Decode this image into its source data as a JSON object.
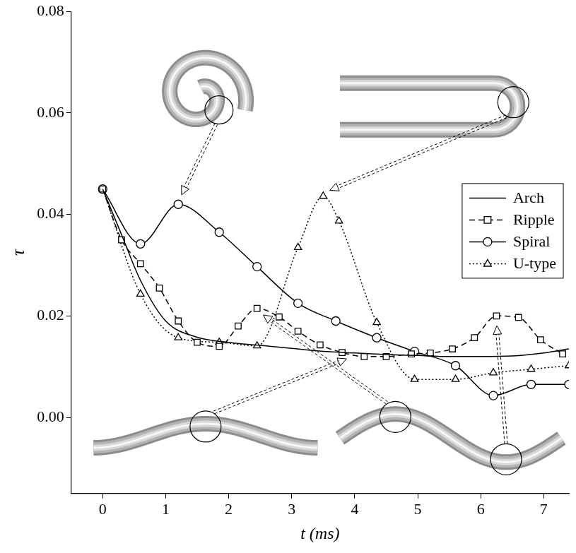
{
  "chart_data": {
    "type": "line",
    "x_label": "t (ms)",
    "y_label": "τ",
    "xlim": [
      -0.5,
      7.4
    ],
    "ylim": [
      -0.015,
      0.08
    ],
    "xticks": [
      0,
      1,
      2,
      3,
      4,
      5,
      6,
      7
    ],
    "yticks": [
      {
        "value": 0,
        "label": "0.00"
      },
      {
        "value": 0.02,
        "label": "0.02"
      },
      {
        "value": 0.04,
        "label": "0.04"
      },
      {
        "value": 0.06,
        "label": "0.06"
      },
      {
        "value": 0.08,
        "label": "0.08"
      }
    ],
    "grid": false,
    "legend": "upper right",
    "series": [
      {
        "name": "Arch",
        "color": "#000000",
        "marker": "none",
        "line_style": "solid",
        "x": [
          0,
          0.3,
          0.6,
          1,
          1.5,
          2,
          2.5,
          3,
          3.5,
          4,
          4.5,
          5,
          5.5,
          6,
          6.5,
          7,
          7.4
        ],
        "values": [
          0.045,
          0.036,
          0.027,
          0.019,
          0.0158,
          0.0148,
          0.0142,
          0.0136,
          0.013,
          0.0127,
          0.0124,
          0.0122,
          0.012,
          0.012,
          0.0121,
          0.0127,
          0.0135
        ]
      },
      {
        "name": "Ripple",
        "color": "#000000",
        "marker": "square",
        "line_style": "dashed",
        "x": [
          0,
          0.3,
          0.6,
          0.9,
          1.2,
          1.5,
          1.85,
          2.15,
          2.45,
          2.8,
          3.1,
          3.45,
          3.8,
          4.15,
          4.5,
          4.9,
          5.2,
          5.55,
          5.9,
          6.25,
          6.6,
          6.95,
          7.3
        ],
        "values": [
          0.045,
          0.035,
          0.0303,
          0.0255,
          0.019,
          0.0148,
          0.014,
          0.018,
          0.0215,
          0.0198,
          0.017,
          0.0143,
          0.0128,
          0.012,
          0.012,
          0.0125,
          0.0127,
          0.0135,
          0.0157,
          0.02,
          0.0197,
          0.0153,
          0.0125
        ]
      },
      {
        "name": "Spiral",
        "color": "#000000",
        "marker": "circle",
        "line_style": "solid",
        "x": [
          0,
          0.6,
          1.2,
          1.85,
          2.45,
          3.1,
          3.7,
          4.35,
          4.95,
          5.6,
          6.2,
          6.8,
          7.4
        ],
        "values": [
          0.045,
          0.0342,
          0.042,
          0.0365,
          0.0297,
          0.0225,
          0.019,
          0.0157,
          0.013,
          0.0102,
          0.0043,
          0.0065,
          0.0065
        ]
      },
      {
        "name": "U-type",
        "color": "#000000",
        "marker": "triangle",
        "line_style": "dotted",
        "x": [
          0,
          0.6,
          1.2,
          1.85,
          2.45,
          3.1,
          3.5,
          3.75,
          4.35,
          4.95,
          5.6,
          6.2,
          6.8,
          7.4
        ],
        "values": [
          0.045,
          0.0243,
          0.0157,
          0.0148,
          0.0141,
          0.0335,
          0.0436,
          0.0387,
          0.0187,
          0.0075,
          0.0075,
          0.0088,
          0.0095,
          0.0102
        ]
      }
    ]
  }
}
